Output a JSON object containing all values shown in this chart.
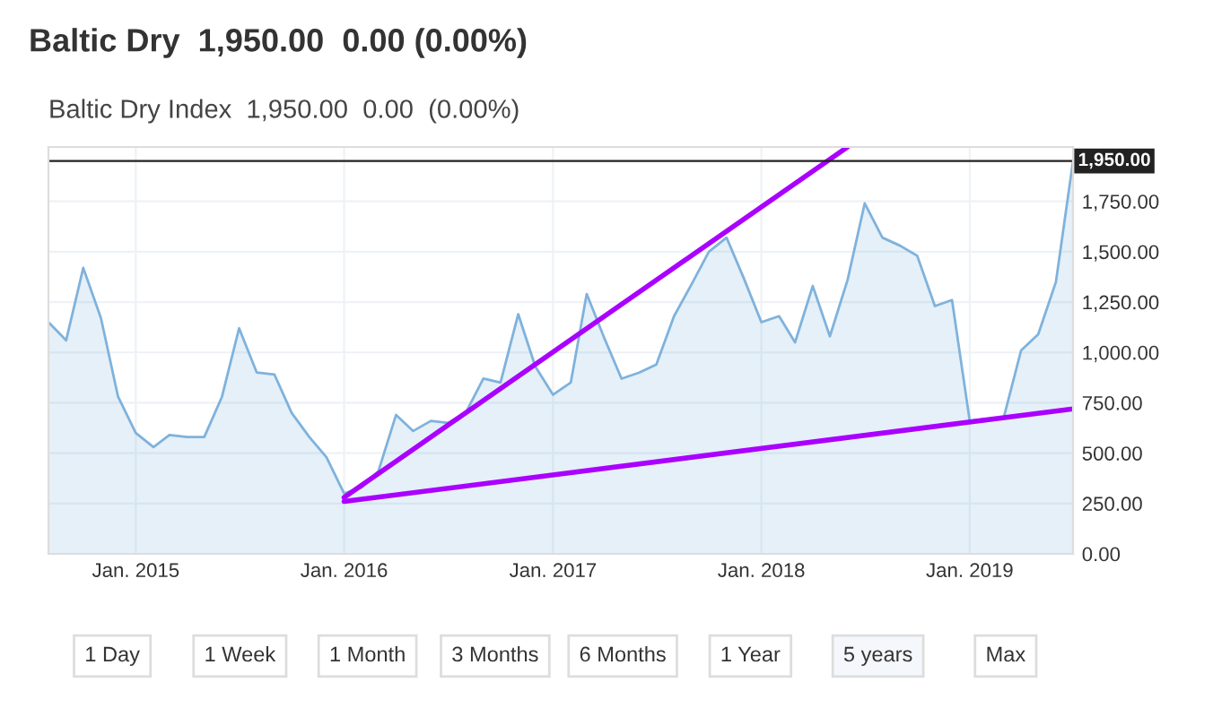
{
  "chart_data": {
    "type": "area",
    "title": "Baltic Dry  1,950.00  0.00 (0.00%)",
    "subtitle": "Baltic Dry Index  1,950.00  0.00  (0.00%)",
    "x": [
      "2014-08",
      "2014-09",
      "2014-10",
      "2014-11",
      "2014-12",
      "2015-01",
      "2015-02",
      "2015-03",
      "2015-04",
      "2015-05",
      "2015-06",
      "2015-07",
      "2015-08",
      "2015-09",
      "2015-10",
      "2015-11",
      "2015-12",
      "2016-01",
      "2016-02",
      "2016-03",
      "2016-04",
      "2016-05",
      "2016-06",
      "2016-07",
      "2016-08",
      "2016-09",
      "2016-10",
      "2016-11",
      "2016-12",
      "2017-01",
      "2017-02",
      "2017-03",
      "2017-04",
      "2017-05",
      "2017-06",
      "2017-07",
      "2017-08",
      "2017-09",
      "2017-10",
      "2017-11",
      "2017-12",
      "2018-01",
      "2018-02",
      "2018-03",
      "2018-04",
      "2018-05",
      "2018-06",
      "2018-07",
      "2018-08",
      "2018-09",
      "2018-10",
      "2018-11",
      "2018-12",
      "2019-01",
      "2019-02",
      "2019-03",
      "2019-04",
      "2019-05",
      "2019-06",
      "2019-07"
    ],
    "series": [
      {
        "color": "#7fb2dc",
        "values": [
          1150,
          1060,
          1420,
          1170,
          780,
          600,
          530,
          590,
          580,
          580,
          780,
          1120,
          900,
          890,
          700,
          580,
          480,
          300,
          330,
          410,
          690,
          610,
          660,
          650,
          700,
          870,
          850,
          1190,
          930,
          790,
          850,
          1290,
          1070,
          870,
          900,
          940,
          1180,
          1340,
          1500,
          1570,
          1370,
          1150,
          1180,
          1050,
          1330,
          1080,
          1360,
          1740,
          1570,
          1530,
          1480,
          1230,
          1260,
          660,
          670,
          670,
          1010,
          1090,
          1350,
          1950
        ]
      },
      {
        "type": "line",
        "color": "#aa00ff",
        "x": [
          "2016-01",
          "2018-06"
        ],
        "values": [
          280,
          2020
        ]
      },
      {
        "type": "line",
        "color": "#aa00ff",
        "x": [
          "2016-01",
          "2019-07"
        ],
        "values": [
          260,
          720
        ]
      }
    ],
    "xlim": [
      "2014-08",
      "2019-07"
    ],
    "ylim": [
      0,
      2020
    ],
    "xticks": [
      {
        "value": "2015-01",
        "label": "Jan. 2015"
      },
      {
        "value": "2016-01",
        "label": "Jan. 2016"
      },
      {
        "value": "2017-01",
        "label": "Jan. 2017"
      },
      {
        "value": "2018-01",
        "label": "Jan. 2018"
      },
      {
        "value": "2019-01",
        "label": "Jan. 2019"
      }
    ],
    "yticks": [
      {
        "value": 0,
        "label": "0.00"
      },
      {
        "value": 250,
        "label": "250.00"
      },
      {
        "value": 500,
        "label": "500.00"
      },
      {
        "value": 750,
        "label": "750.00"
      },
      {
        "value": 1000,
        "label": "1,000.00"
      },
      {
        "value": 1250,
        "label": "1,250.00"
      },
      {
        "value": 1500,
        "label": "1,500.00"
      },
      {
        "value": 1750,
        "label": "1,750.00"
      }
    ],
    "ref_lines": [
      {
        "axis": "y",
        "value": 1950,
        "label": "1,950.00",
        "color": "#222222"
      }
    ],
    "grid": true,
    "annotations": [
      "1 Day",
      "1 Week",
      "1 Month",
      "3 Months",
      "6 Months",
      "1 Year",
      "5 years",
      "Max"
    ]
  }
}
